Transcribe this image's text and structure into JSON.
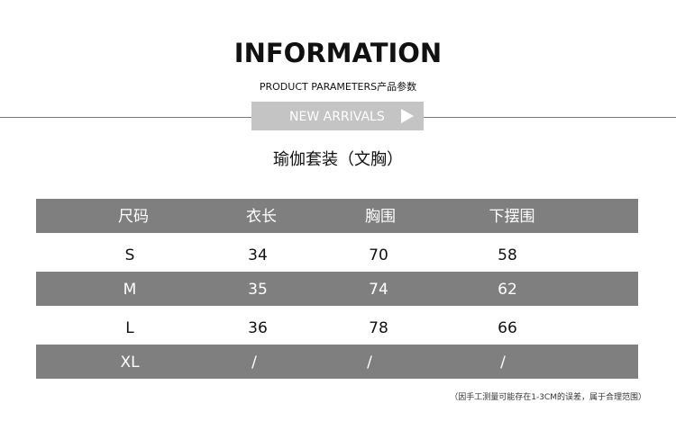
{
  "header": {
    "title": "INFORMATION",
    "subtitle": "PRODUCT PARAMETERS产品参数",
    "badge": "NEW ARRIVALS",
    "badge_icon": "play-triangle-icon"
  },
  "product": "瑜伽套装（文胸）",
  "table": {
    "columns": [
      "尺码",
      "衣长",
      "胸围",
      "下摆围"
    ],
    "rows": [
      [
        "S",
        "34",
        "70",
        "58"
      ],
      [
        "M",
        "35",
        "74",
        "62"
      ],
      [
        "L",
        "36",
        "78",
        "66"
      ],
      [
        "XL",
        "/",
        "/",
        "/"
      ]
    ]
  },
  "note": "（因手工测量可能存在1-3CM的误差，属于合理范围）",
  "colors": {
    "header_row": "#7f7f7f",
    "badge": "#c4c4c4"
  }
}
